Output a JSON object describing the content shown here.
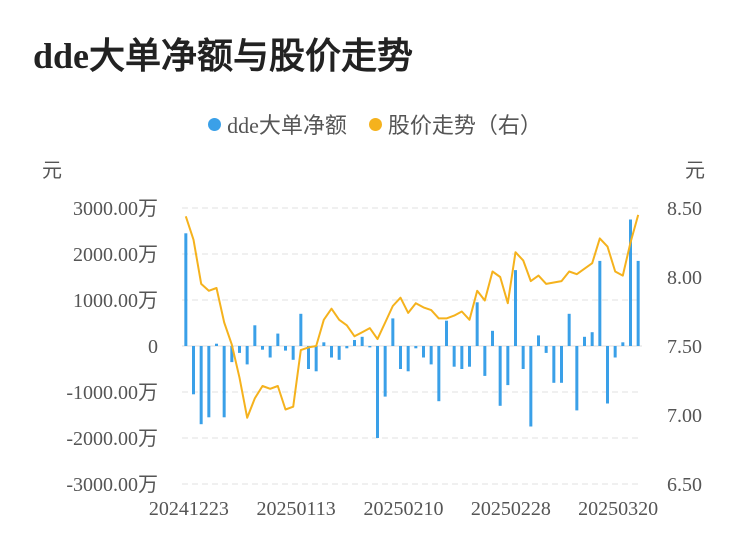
{
  "chart_data": {
    "type": "bar+line",
    "title": "dde大单净额与股价走势",
    "legend": {
      "placement": "top-center"
    },
    "colors": {
      "bar": "#3aa0e8",
      "line": "#f5b21d",
      "grid": "#e6e6e6"
    },
    "left_axis": {
      "unit_label": "元",
      "ylim": [
        -3000,
        3000
      ],
      "ticks": [
        3000,
        2000,
        1000,
        0,
        -1000,
        -2000,
        -3000
      ],
      "tick_labels": [
        "3000.00万",
        "2000.00万",
        "1000.00万",
        "0",
        "-1000.00万",
        "-2000.00万",
        "-3000.00万"
      ]
    },
    "right_axis": {
      "unit_label": "元",
      "ylim": [
        6.5,
        8.5
      ],
      "ticks": [
        8.5,
        8.0,
        7.5,
        7.0,
        6.5
      ],
      "tick_labels": [
        "8.50",
        "8.00",
        "7.50",
        "7.00",
        "6.50"
      ]
    },
    "x_tick_labels": [
      "20241223",
      "20250113",
      "20250210",
      "20250228",
      "20250320"
    ],
    "x_tick_index": [
      0,
      14,
      28,
      42,
      56
    ],
    "grid": true,
    "series": [
      {
        "name": "dde大单净额",
        "type": "bar",
        "axis": "left",
        "unit": "万元",
        "values": [
          2450,
          -1050,
          -1700,
          -1550,
          50,
          -1550,
          -350,
          -150,
          -400,
          450,
          -80,
          -250,
          270,
          -100,
          -300,
          700,
          -500,
          -550,
          80,
          -250,
          -300,
          -50,
          130,
          200,
          -30,
          -2000,
          -1100,
          600,
          -500,
          -550,
          -50,
          -250,
          -400,
          -1200,
          550,
          -450,
          -500,
          -450,
          950,
          -650,
          330,
          -1300,
          -850,
          1650,
          -500,
          -1750,
          230,
          -150,
          -800,
          -800,
          700,
          -1400,
          200,
          300,
          1850,
          -1250,
          -250,
          80,
          2750,
          1850
        ]
      },
      {
        "name": "股价走势（右）",
        "type": "line",
        "axis": "right",
        "unit": "元",
        "values": [
          8.44,
          8.27,
          7.95,
          7.9,
          7.92,
          7.67,
          7.51,
          7.27,
          6.98,
          7.12,
          7.21,
          7.19,
          7.21,
          7.04,
          7.06,
          7.47,
          7.49,
          7.5,
          7.69,
          7.77,
          7.69,
          7.65,
          7.57,
          7.6,
          7.63,
          7.55,
          7.67,
          7.79,
          7.85,
          7.74,
          7.81,
          7.78,
          7.76,
          7.7,
          7.7,
          7.72,
          7.75,
          7.69,
          7.9,
          7.83,
          8.04,
          8.0,
          7.81,
          8.18,
          8.12,
          7.97,
          8.01,
          7.95,
          7.96,
          7.97,
          8.04,
          8.02,
          8.06,
          8.1,
          8.28,
          8.22,
          8.04,
          8.01,
          8.25,
          8.45
        ]
      }
    ]
  }
}
